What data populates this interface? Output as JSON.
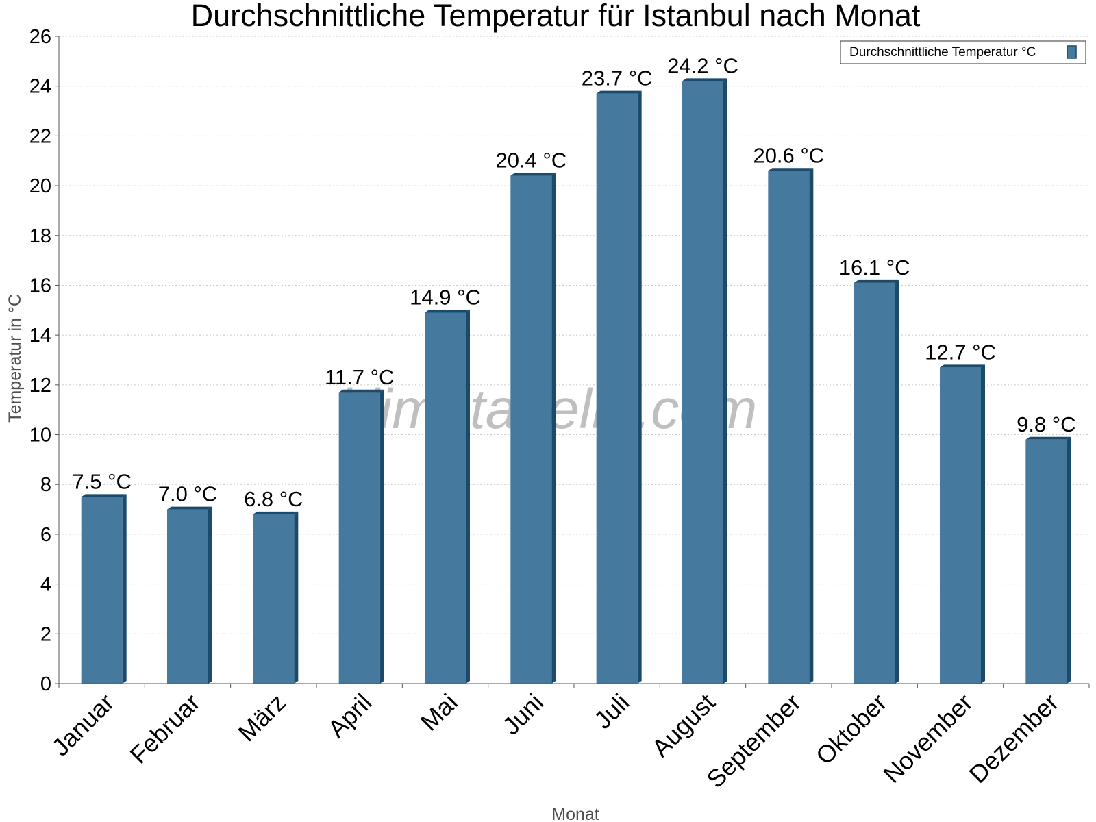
{
  "chart_data": {
    "type": "bar",
    "title": "Durchschnittliche Temperatur für Istanbul nach Monat",
    "xlabel": "Monat",
    "ylabel": "Temperatur in °C",
    "categories": [
      "Januar",
      "Februar",
      "März",
      "April",
      "Mai",
      "Juni",
      "Juli",
      "August",
      "September",
      "Oktober",
      "November",
      "Dezember"
    ],
    "series": [
      {
        "name": "Durchschnittliche Temperatur °C",
        "values": [
          7.5,
          7.0,
          6.8,
          11.7,
          14.9,
          20.4,
          23.7,
          24.2,
          20.6,
          16.1,
          12.7,
          9.8
        ],
        "labels": [
          "7.5 °C",
          "7.0 °C",
          "6.8 °C",
          "11.7 °C",
          "14.9 °C",
          "20.4 °C",
          "23.7 °C",
          "24.2 °C",
          "20.6 °C",
          "16.1 °C",
          "12.7 °C",
          "9.8 °C"
        ],
        "color": "#457a9e",
        "edge_color": "#1b4a6b"
      }
    ],
    "ylim": [
      0,
      26
    ],
    "yticks": [
      0,
      2,
      4,
      6,
      8,
      10,
      12,
      14,
      16,
      18,
      20,
      22,
      24,
      26
    ],
    "grid": true,
    "legend_position": "top-right",
    "watermark": "klimatabelle.com"
  }
}
